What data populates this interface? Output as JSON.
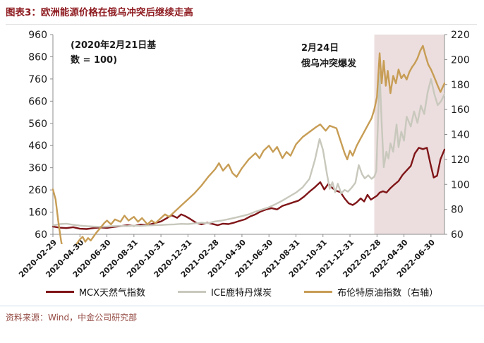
{
  "header": {
    "title": "图表3：欧洲能源价格在俄乌冲突后继续走高"
  },
  "footer": {
    "source": "资料来源：Wind，中金公司研究部"
  },
  "legend": [
    {
      "label": "MCX天然气指数",
      "color": "#7f1518"
    },
    {
      "label": "ICE鹿特丹煤炭",
      "color": "#c8c8bd"
    },
    {
      "label": "布伦特原油指数（右轴）",
      "color": "#c79d55"
    }
  ],
  "chart_data": {
    "type": "line",
    "title": "欧洲能源价格在俄乌冲突后继续走高",
    "base_note_lines": [
      "(2020年2月21日基",
      "数 = 100)"
    ],
    "event_note_lines": [
      "2月24日",
      "俄乌冲突爆发"
    ],
    "left_axis": {
      "range": [
        60,
        960
      ],
      "ticks": [
        960,
        860,
        760,
        660,
        560,
        460,
        360,
        260,
        160,
        60
      ]
    },
    "right_axis": {
      "range": [
        60,
        220
      ],
      "ticks": [
        220,
        200,
        180,
        160,
        140,
        120,
        100,
        80,
        60
      ]
    },
    "x_axis": {
      "domain_months": [
        0,
        29
      ],
      "tick_every_months": 2,
      "tick_labels": [
        "2020-02-29",
        "2020-04-30",
        "2020-06-30",
        "2020-08-31",
        "2020-10-31",
        "2020-12-31",
        "2021-02-28",
        "2021-04-30",
        "2021-06-30",
        "2021-08-31",
        "2021-10-31",
        "2021-12-31",
        "2022-02-28",
        "2022-04-30",
        "2022-06-30"
      ]
    },
    "shaded_region": {
      "start_month": 23.8,
      "end_month": 29,
      "color": "#ecdede",
      "meaning": "2022-02-24 俄乌冲突爆发后"
    },
    "colors": {
      "accent_red": "#8e1b20",
      "gas_line": "#7f1518",
      "coal_line": "#c8c8bd",
      "brent_line": "#c79d55",
      "axis": "#8c8c8c"
    },
    "series": [
      {
        "name": "MCX天然气指数",
        "axis": "left",
        "color": "#7f1518",
        "points": [
          [
            0,
            95
          ],
          [
            0.5,
            90
          ],
          [
            1,
            88
          ],
          [
            1.5,
            92
          ],
          [
            2,
            85
          ],
          [
            2.5,
            84
          ],
          [
            3,
            88
          ],
          [
            3.5,
            91
          ],
          [
            4,
            89
          ],
          [
            4.5,
            93
          ],
          [
            5,
            97
          ],
          [
            5.5,
            101
          ],
          [
            6,
            98
          ],
          [
            6.5,
            104
          ],
          [
            7,
            101
          ],
          [
            7.5,
            110
          ],
          [
            8,
            118
          ],
          [
            8.4,
            132
          ],
          [
            8.8,
            146
          ],
          [
            9.2,
            134
          ],
          [
            9.5,
            150
          ],
          [
            9.8,
            142
          ],
          [
            10.2,
            128
          ],
          [
            10.6,
            112
          ],
          [
            11,
            105
          ],
          [
            11.4,
            112
          ],
          [
            11.8,
            107
          ],
          [
            12.2,
            101
          ],
          [
            12.6,
            108
          ],
          [
            13,
            106
          ],
          [
            13.4,
            112
          ],
          [
            13.8,
            120
          ],
          [
            14.2,
            127
          ],
          [
            14.6,
            140
          ],
          [
            15,
            150
          ],
          [
            15.4,
            163
          ],
          [
            15.8,
            172
          ],
          [
            16.2,
            178
          ],
          [
            16.6,
            172
          ],
          [
            17,
            188
          ],
          [
            17.4,
            196
          ],
          [
            17.8,
            204
          ],
          [
            18.2,
            212
          ],
          [
            18.6,
            230
          ],
          [
            19,
            252
          ],
          [
            19.4,
            272
          ],
          [
            19.8,
            295
          ],
          [
            20.1,
            262
          ],
          [
            20.4,
            288
          ],
          [
            20.7,
            268
          ],
          [
            21,
            256
          ],
          [
            21.3,
            250
          ],
          [
            21.6,
            222
          ],
          [
            21.9,
            200
          ],
          [
            22.2,
            192
          ],
          [
            22.5,
            204
          ],
          [
            22.8,
            222
          ],
          [
            23.05,
            208
          ],
          [
            23.3,
            238
          ],
          [
            23.55,
            216
          ],
          [
            23.8,
            226
          ],
          [
            24,
            234
          ],
          [
            24.2,
            248
          ],
          [
            24.45,
            254
          ],
          [
            24.7,
            248
          ],
          [
            25,
            268
          ],
          [
            25.3,
            285
          ],
          [
            25.6,
            300
          ],
          [
            25.9,
            328
          ],
          [
            26.2,
            348
          ],
          [
            26.5,
            368
          ],
          [
            26.8,
            424
          ],
          [
            27.1,
            450
          ],
          [
            27.4,
            444
          ],
          [
            27.7,
            450
          ],
          [
            27.95,
            380
          ],
          [
            28.2,
            316
          ],
          [
            28.45,
            324
          ],
          [
            28.7,
            398
          ],
          [
            29,
            442
          ]
        ]
      },
      {
        "name": "ICE鹿特丹煤炭",
        "axis": "left",
        "color": "#c8c8bd",
        "points": [
          [
            0,
            100
          ],
          [
            0.5,
            106
          ],
          [
            1,
            108
          ],
          [
            1.5,
            103
          ],
          [
            2,
            99
          ],
          [
            2.5,
            97
          ],
          [
            3,
            95
          ],
          [
            3.5,
            94
          ],
          [
            4,
            95
          ],
          [
            4.5,
            97
          ],
          [
            5,
            98
          ],
          [
            5.5,
            97
          ],
          [
            6,
            99
          ],
          [
            6.5,
            98
          ],
          [
            7,
            100
          ],
          [
            7.5,
            101
          ],
          [
            8,
            102
          ],
          [
            8.5,
            104
          ],
          [
            9,
            105
          ],
          [
            9.5,
            107
          ],
          [
            10,
            106
          ],
          [
            10.5,
            109
          ],
          [
            11,
            112
          ],
          [
            11.5,
            110
          ],
          [
            12,
            118
          ],
          [
            12.5,
            122
          ],
          [
            13,
            128
          ],
          [
            13.5,
            135
          ],
          [
            14,
            142
          ],
          [
            14.5,
            150
          ],
          [
            15,
            162
          ],
          [
            15.5,
            172
          ],
          [
            16,
            182
          ],
          [
            16.5,
            196
          ],
          [
            17,
            212
          ],
          [
            17.5,
            230
          ],
          [
            18,
            248
          ],
          [
            18.5,
            272
          ],
          [
            19,
            310
          ],
          [
            19.4,
            395
          ],
          [
            19.75,
            490
          ],
          [
            20,
            440
          ],
          [
            20.3,
            330
          ],
          [
            20.5,
            265
          ],
          [
            20.7,
            295
          ],
          [
            20.9,
            250
          ],
          [
            21.1,
            288
          ],
          [
            21.35,
            245
          ],
          [
            21.6,
            260
          ],
          [
            21.85,
            252
          ],
          [
            22.1,
            268
          ],
          [
            22.4,
            292
          ],
          [
            22.65,
            372
          ],
          [
            22.9,
            330
          ],
          [
            23.1,
            312
          ],
          [
            23.35,
            326
          ],
          [
            23.6,
            310
          ],
          [
            23.8,
            320
          ],
          [
            23.95,
            345
          ],
          [
            24.2,
            790
          ],
          [
            24.35,
            560
          ],
          [
            24.5,
            362
          ],
          [
            24.7,
            432
          ],
          [
            24.85,
            402
          ],
          [
            25,
            470
          ],
          [
            25.2,
            432
          ],
          [
            25.45,
            555
          ],
          [
            25.6,
            452
          ],
          [
            25.8,
            522
          ],
          [
            26,
            482
          ],
          [
            26.2,
            590
          ],
          [
            26.5,
            546
          ],
          [
            26.75,
            614
          ],
          [
            27,
            562
          ],
          [
            27.25,
            640
          ],
          [
            27.5,
            602
          ],
          [
            27.75,
            700
          ],
          [
            28,
            760
          ],
          [
            28.25,
            692
          ],
          [
            28.5,
            642
          ],
          [
            28.75,
            660
          ],
          [
            29,
            692
          ]
        ]
      },
      {
        "name": "布伦特原油指数（右轴）",
        "axis": "right",
        "color": "#c79d55",
        "points": [
          [
            0,
            96
          ],
          [
            0.2,
            88
          ],
          [
            0.4,
            70
          ],
          [
            0.6,
            55
          ],
          [
            0.8,
            44
          ],
          [
            1,
            38
          ],
          [
            1.2,
            34
          ],
          [
            1.4,
            40
          ],
          [
            1.6,
            48
          ],
          [
            1.8,
            53
          ],
          [
            2,
            56
          ],
          [
            2.2,
            58
          ],
          [
            2.4,
            54
          ],
          [
            2.6,
            57
          ],
          [
            2.8,
            55
          ],
          [
            3,
            58
          ],
          [
            3.2,
            61
          ],
          [
            3.5,
            65
          ],
          [
            3.8,
            69
          ],
          [
            4,
            71
          ],
          [
            4.3,
            68
          ],
          [
            4.6,
            72
          ],
          [
            5,
            70
          ],
          [
            5.3,
            75
          ],
          [
            5.6,
            71
          ],
          [
            6,
            74
          ],
          [
            6.3,
            70
          ],
          [
            6.6,
            73
          ],
          [
            7,
            68
          ],
          [
            7.3,
            71
          ],
          [
            7.6,
            69
          ],
          [
            8,
            73
          ],
          [
            8.3,
            76
          ],
          [
            8.6,
            74
          ],
          [
            9,
            78
          ],
          [
            9.5,
            83
          ],
          [
            10,
            88
          ],
          [
            10.5,
            93
          ],
          [
            11,
            99
          ],
          [
            11.5,
            106
          ],
          [
            12,
            112
          ],
          [
            12.3,
            117
          ],
          [
            12.6,
            111
          ],
          [
            13,
            116
          ],
          [
            13.3,
            109
          ],
          [
            13.6,
            106
          ],
          [
            14,
            113
          ],
          [
            14.5,
            120
          ],
          [
            15,
            125
          ],
          [
            15.3,
            121
          ],
          [
            15.6,
            127
          ],
          [
            16,
            131
          ],
          [
            16.3,
            126
          ],
          [
            16.6,
            130
          ],
          [
            17,
            121
          ],
          [
            17.3,
            126
          ],
          [
            17.6,
            123
          ],
          [
            18,
            132
          ],
          [
            18.5,
            138
          ],
          [
            19,
            142
          ],
          [
            19.5,
            146
          ],
          [
            19.8,
            148
          ],
          [
            20.2,
            143
          ],
          [
            20.5,
            147
          ],
          [
            21,
            145
          ],
          [
            21.3,
            135
          ],
          [
            21.6,
            125
          ],
          [
            21.8,
            120
          ],
          [
            22,
            127
          ],
          [
            22.2,
            123
          ],
          [
            22.5,
            131
          ],
          [
            22.8,
            137
          ],
          [
            23,
            141
          ],
          [
            23.3,
            147
          ],
          [
            23.6,
            153
          ],
          [
            23.8,
            160
          ],
          [
            24,
            170
          ],
          [
            24.2,
            205
          ],
          [
            24.35,
            181
          ],
          [
            24.5,
            199
          ],
          [
            24.65,
            179
          ],
          [
            24.8,
            191
          ],
          [
            25,
            173
          ],
          [
            25.2,
            187
          ],
          [
            25.4,
            181
          ],
          [
            25.6,
            192
          ],
          [
            25.8,
            185
          ],
          [
            26,
            188
          ],
          [
            26.2,
            184
          ],
          [
            26.4,
            190
          ],
          [
            26.6,
            194
          ],
          [
            26.8,
            197
          ],
          [
            27,
            201
          ],
          [
            27.2,
            207
          ],
          [
            27.4,
            211
          ],
          [
            27.6,
            203
          ],
          [
            27.8,
            196
          ],
          [
            28,
            192
          ],
          [
            28.2,
            187
          ],
          [
            28.5,
            179
          ],
          [
            28.7,
            174
          ],
          [
            29,
            181
          ]
        ]
      }
    ]
  }
}
